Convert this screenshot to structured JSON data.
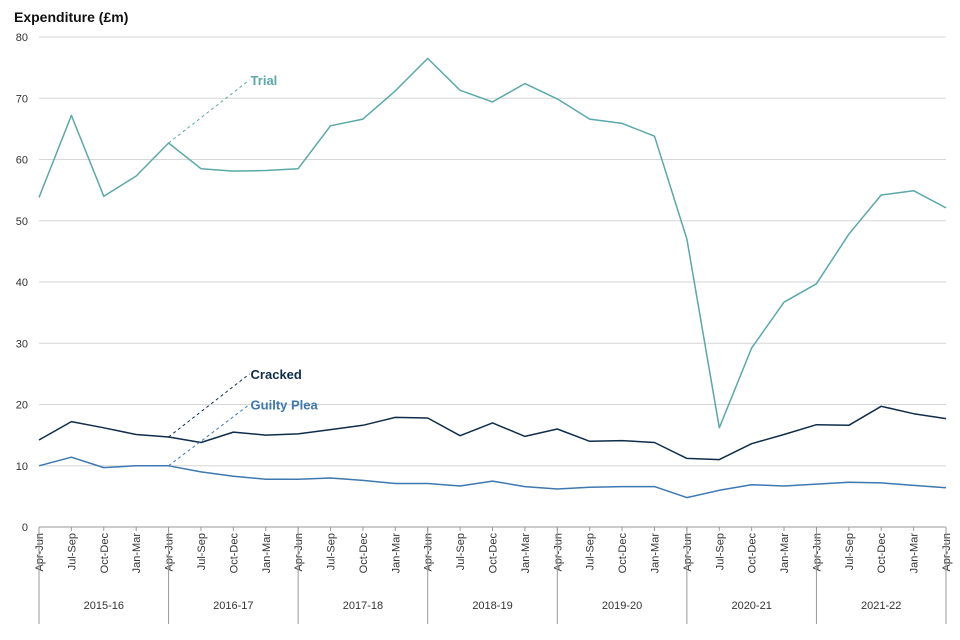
{
  "chart_data": {
    "type": "line",
    "ylabel": "Expenditure (£m)",
    "ylim": [
      0,
      80
    ],
    "yticks": [
      0,
      10,
      20,
      30,
      40,
      50,
      60,
      70,
      80
    ],
    "grid": true,
    "x": [
      "Apr-Jun",
      "Jul-Sep",
      "Oct-Dec",
      "Jan-Mar",
      "Apr-Jun",
      "Jul-Sep",
      "Oct-Dec",
      "Jan-Mar",
      "Apr-Jun",
      "Jul-Sep",
      "Oct-Dec",
      "Jan-Mar",
      "Apr-Jun",
      "Jul-Sep",
      "Oct-Dec",
      "Jan-Mar",
      "Apr-Jun",
      "Jul-Sep",
      "Oct-Dec",
      "Jan-Mar",
      "Apr-Jun",
      "Jul-Sep",
      "Oct-Dec",
      "Jan-Mar",
      "Apr-Jun",
      "Jul-Sep",
      "Oct-Dec",
      "Jan-Mar",
      "Apr-Jun"
    ],
    "years": [
      "2015-16",
      "2016-17",
      "2017-18",
      "2018-19",
      "2019-20",
      "2020-21",
      "2021-22"
    ],
    "series": [
      {
        "name": "Trial",
        "color": "#5ba8a8",
        "values": [
          53.8,
          67.2,
          54.0,
          57.3,
          62.7,
          58.5,
          58.1,
          58.2,
          58.5,
          65.5,
          66.6,
          71.2,
          76.5,
          71.3,
          69.4,
          72.4,
          69.9,
          66.6,
          65.9,
          63.8,
          47.0,
          16.2,
          29.2,
          36.7,
          39.7,
          47.8,
          54.2,
          54.9,
          52.1
        ],
        "label_index": 4,
        "label_value": 73
      },
      {
        "name": "Cracked",
        "color": "#0f2d4a",
        "values": [
          14.2,
          17.2,
          16.2,
          15.1,
          14.7,
          13.8,
          15.5,
          15.0,
          15.2,
          15.9,
          16.6,
          17.9,
          17.8,
          14.9,
          17.0,
          14.8,
          16.0,
          14.0,
          14.1,
          13.8,
          11.2,
          11.0,
          13.6,
          15.1,
          16.7,
          16.6,
          19.7,
          18.5,
          17.7
        ],
        "label_index": 4,
        "label_value": 25
      },
      {
        "name": "Guilty Plea",
        "color": "#3d78b0",
        "values": [
          10.0,
          11.4,
          9.7,
          10.0,
          10.0,
          9.0,
          8.3,
          7.8,
          7.8,
          8.0,
          7.6,
          7.1,
          7.1,
          6.7,
          7.5,
          6.6,
          6.2,
          6.5,
          6.6,
          6.6,
          4.8,
          6.0,
          6.9,
          6.7,
          7.0,
          7.3,
          7.2,
          6.8,
          6.4
        ],
        "label_index": 4,
        "label_value": 20
      }
    ]
  }
}
